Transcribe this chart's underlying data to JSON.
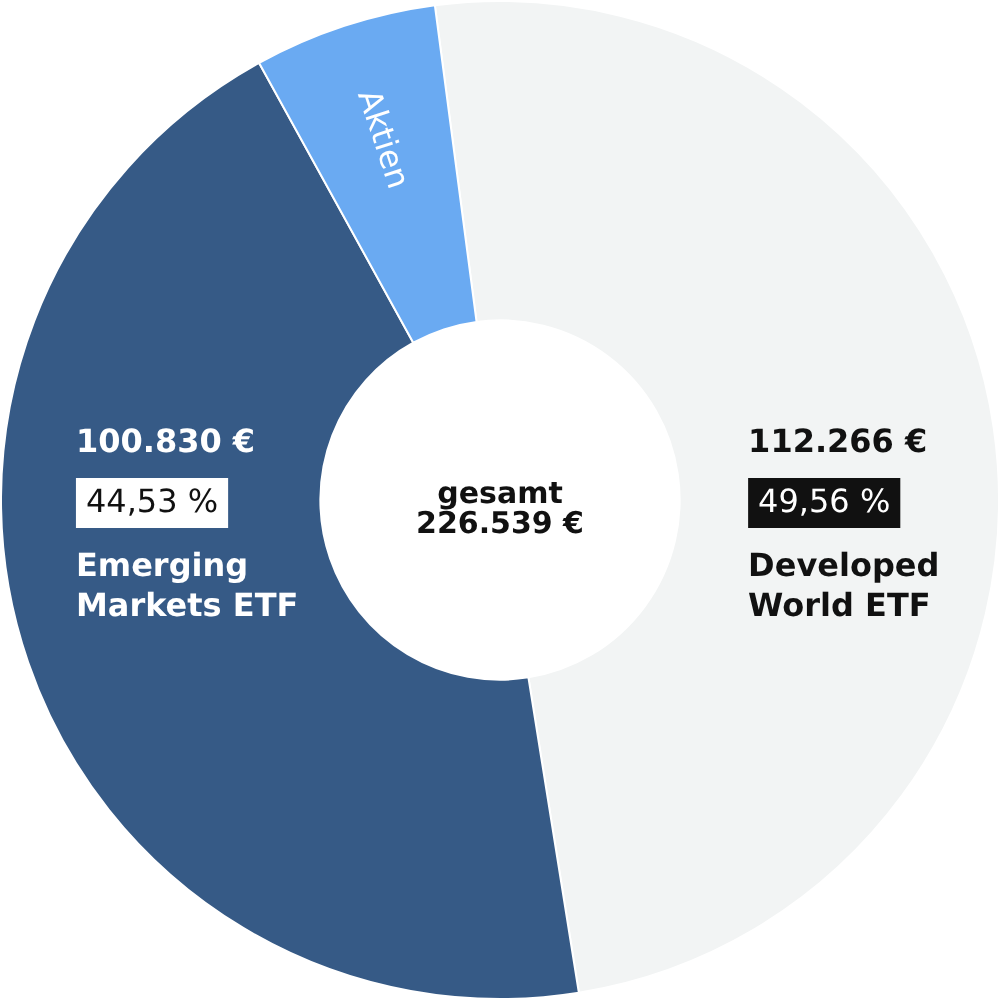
{
  "chart_data": {
    "type": "donut",
    "categories": [
      "Developed World ETF",
      "Emerging Markets ETF",
      "Aktien"
    ],
    "values": [
      112266,
      100830,
      13443
    ],
    "colors": [
      "#f2f4f4",
      "#365a86",
      "#6aaaf2"
    ],
    "value_labels": [
      "112.266 €",
      "100.830 €",
      null
    ],
    "annotations": [
      {
        "text": "49,56 %",
        "x": "Developed World ETF"
      },
      {
        "text": "44,53 %",
        "x": "Emerging Markets ETF"
      },
      "gesamt",
      "226.539 €"
    ]
  }
}
